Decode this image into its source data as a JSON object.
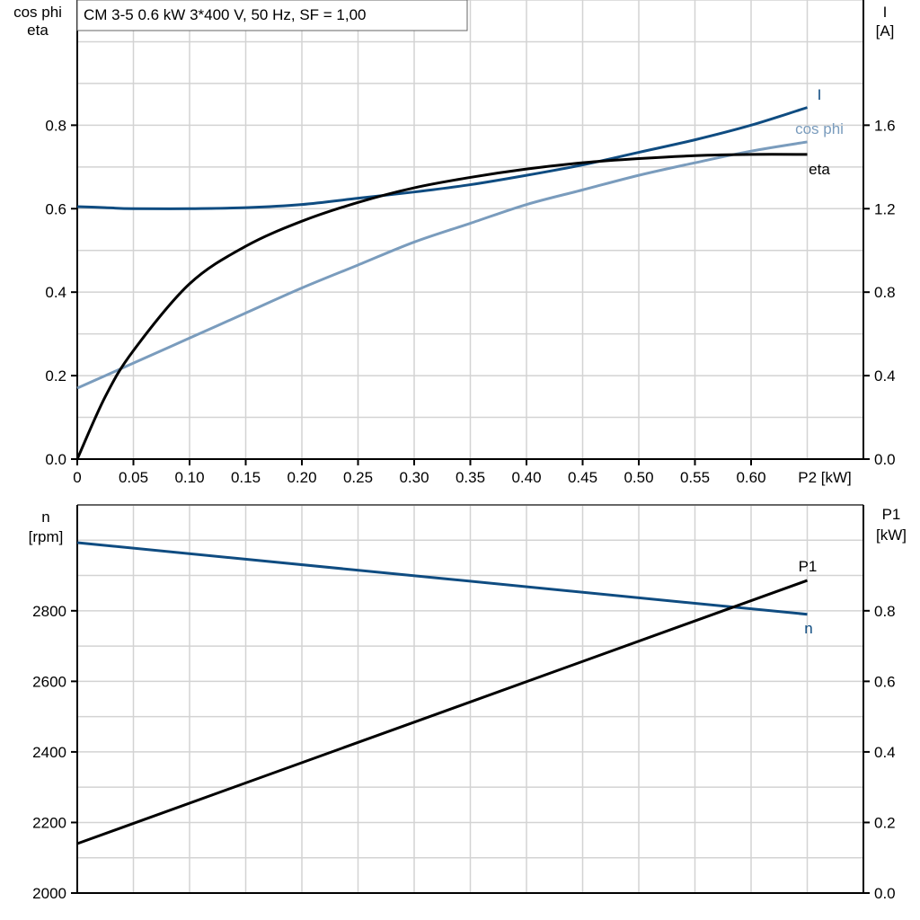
{
  "title": "CM 3-5   0.6 kW   3*400 V, 50 Hz, SF = 1,00",
  "colors": {
    "I": "#0f4c81",
    "cos_phi": "#7a9cbd",
    "eta": "#000000",
    "n": "#0f4c81",
    "P1": "#000000",
    "grid": "#d3d3d3"
  },
  "chart_data": [
    {
      "type": "line",
      "grid": true,
      "x_ticks": [
        "0",
        "0.05",
        "0.10",
        "0.15",
        "0.20",
        "0.25",
        "0.30",
        "0.35",
        "0.40",
        "0.45",
        "0.50",
        "0.55",
        "0.60"
      ],
      "xlabel": "P2 [kW]",
      "xlim": [
        0,
        0.7
      ],
      "ylabel_left": [
        "cos phi",
        "eta"
      ],
      "ylim_left": [
        0,
        1.1
      ],
      "yticks_left": [
        "0.0",
        "0.2",
        "0.4",
        "0.6",
        "0.8"
      ],
      "ylabel_right": [
        "I",
        "[A]"
      ],
      "ylim_right": [
        0,
        2.2
      ],
      "yticks_right": [
        "0.0",
        "0.4",
        "0.8",
        "1.2",
        "1.6"
      ],
      "x": [
        0,
        0.025,
        0.05,
        0.1,
        0.15,
        0.2,
        0.25,
        0.3,
        0.35,
        0.4,
        0.45,
        0.5,
        0.55,
        0.6,
        0.65
      ],
      "series": [
        {
          "name": "I",
          "axis": "right",
          "values": [
            1.21,
            1.205,
            1.2,
            1.2,
            1.205,
            1.22,
            1.25,
            1.28,
            1.315,
            1.36,
            1.41,
            1.47,
            1.53,
            1.6,
            1.685
          ]
        },
        {
          "name": "cos phi",
          "axis": "left",
          "values": [
            0.17,
            0.2,
            0.23,
            0.29,
            0.35,
            0.41,
            0.465,
            0.52,
            0.565,
            0.61,
            0.645,
            0.68,
            0.71,
            0.738,
            0.76
          ]
        },
        {
          "name": "eta",
          "axis": "left",
          "values": [
            0,
            0.15,
            0.26,
            0.42,
            0.51,
            0.57,
            0.615,
            0.65,
            0.675,
            0.695,
            0.71,
            0.72,
            0.727,
            0.73,
            0.73
          ]
        }
      ]
    },
    {
      "type": "line",
      "grid": true,
      "xlim": [
        0,
        0.7
      ],
      "ylabel_left": [
        "n",
        "[rpm]"
      ],
      "ylim_left": [
        2000,
        3100
      ],
      "yticks_left": [
        "2000",
        "2200",
        "2400",
        "2600",
        "2800"
      ],
      "ylabel_right": [
        "P1",
        "[kW]"
      ],
      "ylim_right": [
        0,
        1.1
      ],
      "yticks_right": [
        "0.0",
        "0.2",
        "0.4",
        "0.6",
        "0.8"
      ],
      "x": [
        0,
        0.65
      ],
      "series": [
        {
          "name": "n",
          "axis": "left",
          "values": [
            2993,
            2790
          ]
        },
        {
          "name": "P1",
          "axis": "right",
          "values": [
            0.14,
            0.886
          ]
        }
      ]
    }
  ]
}
